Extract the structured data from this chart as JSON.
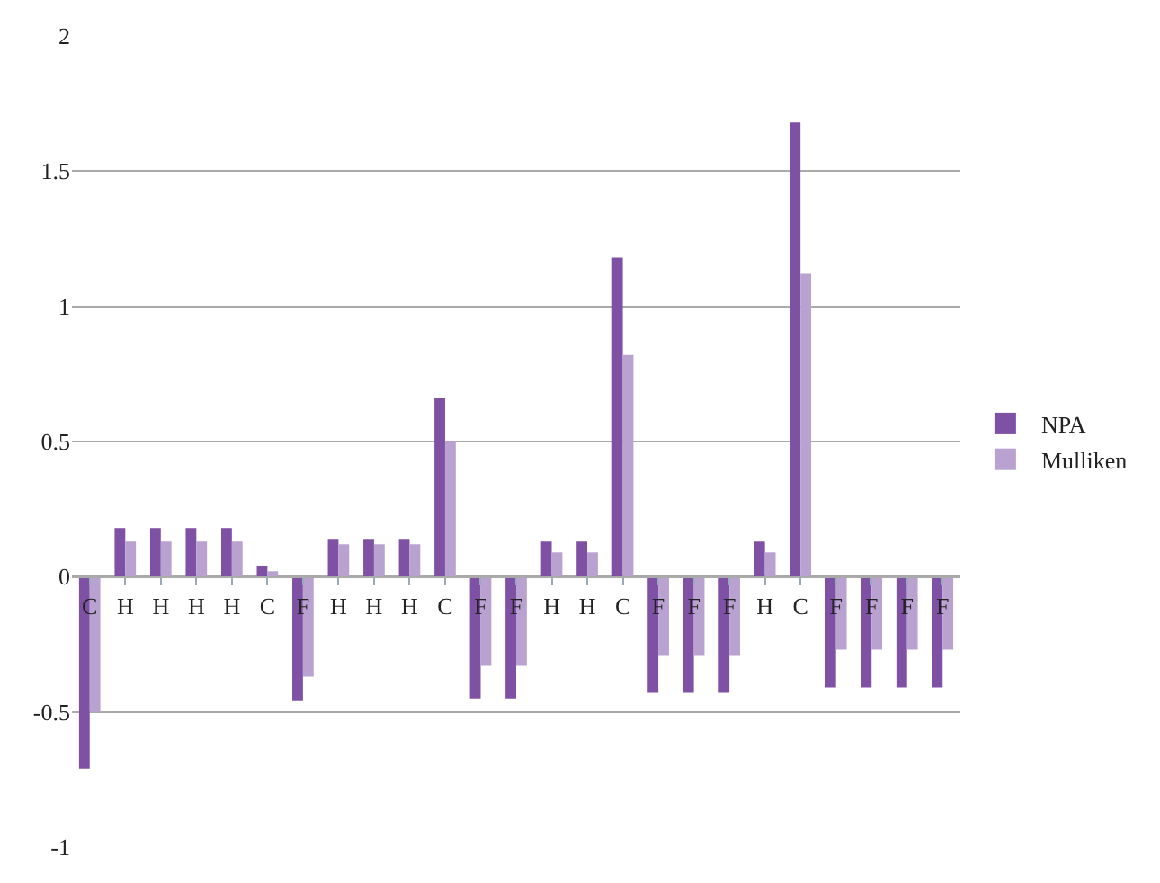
{
  "chart_data": {
    "type": "bar",
    "categories": [
      "C",
      "H",
      "H",
      "H",
      "H",
      "C",
      "F",
      "H",
      "H",
      "H",
      "C",
      "F",
      "F",
      "H",
      "H",
      "C",
      "F",
      "F",
      "F",
      "H",
      "C",
      "F",
      "F",
      "F",
      "F"
    ],
    "series": [
      {
        "name": "NPA",
        "color": "#7f51a5",
        "values": [
          -0.71,
          0.18,
          0.18,
          0.18,
          0.18,
          0.04,
          -0.46,
          0.14,
          0.14,
          0.14,
          0.66,
          -0.45,
          -0.45,
          0.13,
          0.13,
          1.18,
          -0.43,
          -0.43,
          -0.43,
          0.13,
          1.68,
          -0.41,
          -0.41,
          -0.41,
          -0.41
        ]
      },
      {
        "name": "Mulliken",
        "color": "#b9a2d0",
        "values": [
          -0.5,
          0.13,
          0.13,
          0.13,
          0.13,
          0.02,
          -0.37,
          0.12,
          0.12,
          0.12,
          0.5,
          -0.33,
          -0.33,
          0.09,
          0.09,
          0.82,
          -0.29,
          -0.29,
          -0.29,
          0.09,
          1.12,
          -0.27,
          -0.27,
          -0.27,
          -0.27
        ]
      }
    ],
    "ylim": [
      -1,
      2
    ],
    "yticks": [
      -1,
      -0.5,
      0,
      0.5,
      1,
      1.5,
      2
    ],
    "grid": "y",
    "legend": "right"
  }
}
